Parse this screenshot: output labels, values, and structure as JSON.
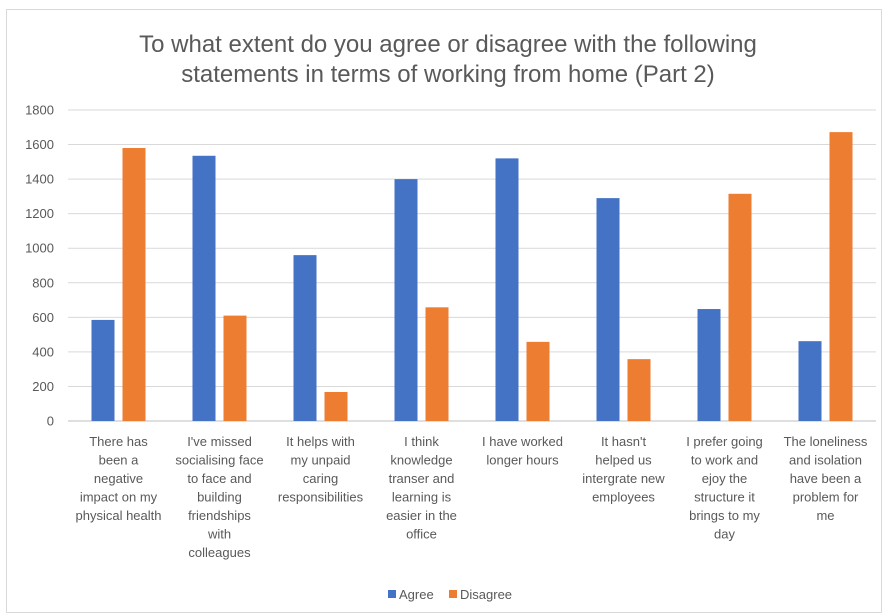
{
  "chart_data": {
    "type": "bar",
    "title_lines": [
      "To what extent do you agree or disagree with the following",
      "statements in terms of working from home (Part 2)"
    ],
    "categories": [
      [
        "There has",
        "been a",
        "negative",
        "impact on my",
        "physical health"
      ],
      [
        "I've missed",
        "socialising face",
        "to face and",
        "building",
        "friendships",
        "with",
        "colleagues"
      ],
      [
        "It helps with",
        "my unpaid",
        "caring",
        "responsibilities"
      ],
      [
        "I think",
        "knowledge",
        "transer and",
        "learning is",
        "easier in the",
        "office"
      ],
      [
        "I have worked",
        "longer hours"
      ],
      [
        "It hasn't",
        "helped us",
        "intergrate new",
        "employees"
      ],
      [
        "I prefer going",
        "to work and",
        "ejoy the",
        "structure it",
        "brings to my",
        "day"
      ],
      [
        "The loneliness",
        "and isolation",
        "have been a",
        "problem for",
        "me"
      ]
    ],
    "series": [
      {
        "name": "Agree",
        "color": "#4472c4",
        "values": [
          585,
          1535,
          960,
          1400,
          1520,
          1290,
          648,
          462
        ]
      },
      {
        "name": "Disagree",
        "color": "#ed7d31",
        "values": [
          1580,
          610,
          168,
          658,
          458,
          358,
          1315,
          1672
        ]
      }
    ],
    "ylim": [
      0,
      1800
    ],
    "yticks": [
      0,
      200,
      400,
      600,
      800,
      1000,
      1200,
      1400,
      1600,
      1800
    ],
    "grid": true,
    "legend_position": "bottom"
  }
}
